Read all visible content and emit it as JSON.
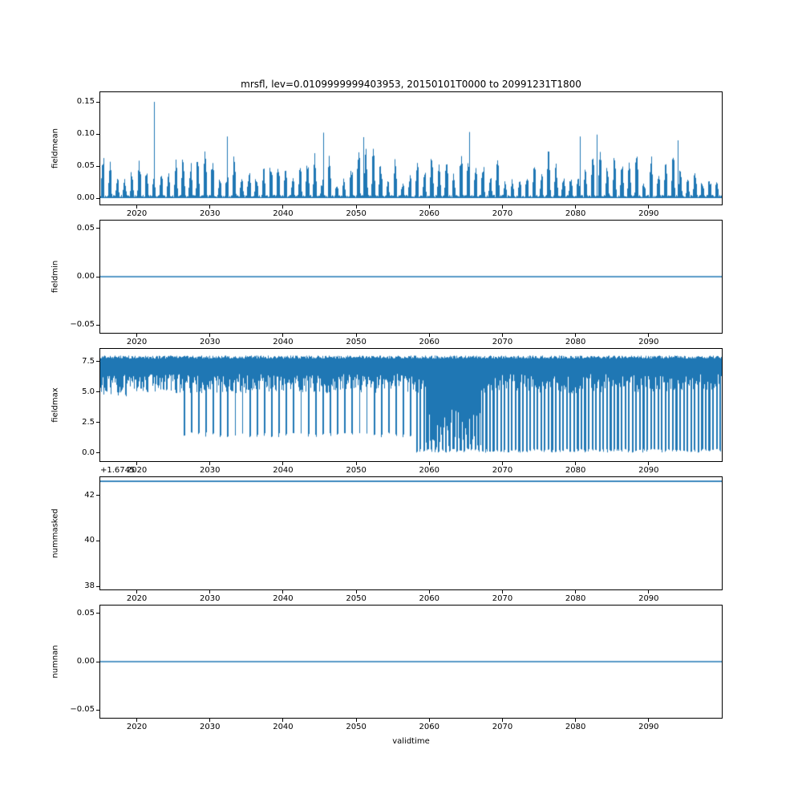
{
  "figure": {
    "title": "mrsfl, lev=0.0109999999403953, 20150101T0000 to 20991231T1800",
    "xlabel": "validtime",
    "line_color": "#1f77b4",
    "background": "#ffffff",
    "text_color": "#000000"
  },
  "x_axis": {
    "range": [
      2015,
      2100
    ],
    "tick_values": [
      2020,
      2030,
      2040,
      2050,
      2060,
      2070,
      2080,
      2090
    ],
    "tick_labels": [
      "2020",
      "2030",
      "2040",
      "2050",
      "2060",
      "2070",
      "2080",
      "2090"
    ]
  },
  "chart_data": [
    {
      "type": "line",
      "ylabel": "fieldmean",
      "kind": "seasonal_comb",
      "ylim": [
        -0.01,
        0.165
      ],
      "ytick_values": [
        0.0,
        0.05,
        0.1,
        0.15
      ],
      "ytick_labels": [
        "0.00",
        "0.05",
        "0.10",
        "0.15"
      ],
      "baseline": 0.0,
      "peak_range": [
        0.03,
        0.095
      ],
      "spikes": [
        [
          2022.3,
          0.15
        ],
        [
          2032.3,
          0.096
        ],
        [
          2045.5,
          0.102
        ],
        [
          2051.0,
          0.095
        ],
        [
          2065.4,
          0.103
        ],
        [
          2080.6,
          0.096
        ],
        [
          2082.9,
          0.099
        ],
        [
          2094.0,
          0.09
        ]
      ],
      "summary": "Annual oscillation between 0.00 and ~0.03-0.10 with an isolated maximum of 0.15 near 2022"
    },
    {
      "type": "line",
      "ylabel": "fieldmin",
      "kind": "flat",
      "value": 0.0,
      "ylim": [
        -0.058,
        0.058
      ],
      "ytick_values": [
        -0.05,
        0.0,
        0.05
      ],
      "ytick_labels": [
        "−0.05",
        "0.00",
        "0.05"
      ],
      "summary": "Constant 0.00 from 2015 to 2100"
    },
    {
      "type": "line",
      "ylabel": "fieldmax",
      "kind": "band_comb",
      "ylim": [
        -0.66,
        8.55
      ],
      "ytick_values": [
        0.0,
        2.5,
        5.0,
        7.5
      ],
      "ytick_labels": [
        "0.0",
        "2.5",
        "5.0",
        "7.5"
      ],
      "top_range": [
        7.75,
        8.0
      ],
      "band_bottom_range": [
        4.9,
        6.5
      ],
      "dip_levels": {
        "pre_2026": 4.65,
        "mid_2026_2058": 1.3,
        "post_2058": 0.3
      },
      "dense_low_interval": [
        2059.5,
        2067
      ],
      "summary": "Dense band near 5-8 with annual dips to ~1.3 between 2026-2058 and dips to ~0 after 2058"
    },
    {
      "type": "line",
      "ylabel": "nummasked",
      "kind": "flat",
      "value": 42.63,
      "offset_text": "+1.6745",
      "ylim": [
        37.86,
        42.81
      ],
      "ytick_values": [
        38,
        40,
        42
      ],
      "ytick_labels": [
        "38",
        "40",
        "42"
      ],
      "summary": "Constant value near top of axis (offset +1.6745)"
    },
    {
      "type": "line",
      "ylabel": "numnan",
      "kind": "flat",
      "value": 0.0,
      "ylim": [
        -0.058,
        0.058
      ],
      "ytick_values": [
        -0.05,
        0.0,
        0.05
      ],
      "ytick_labels": [
        "−0.05",
        "0.00",
        "0.05"
      ],
      "summary": "Constant 0.00 from 2015 to 2100"
    }
  ]
}
